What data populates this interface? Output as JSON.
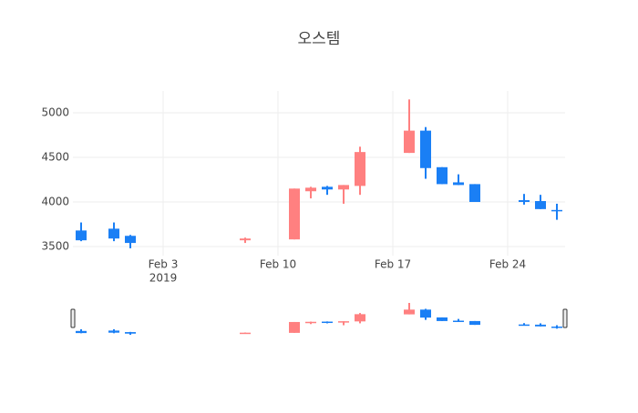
{
  "chart_data": {
    "type": "candlestick",
    "title": "오스템",
    "x": [
      "2019-01-29",
      "2019-01-31",
      "2019-02-01",
      "2019-02-08",
      "2019-02-11",
      "2019-02-12",
      "2019-02-13",
      "2019-02-14",
      "2019-02-15",
      "2019-02-18",
      "2019-02-19",
      "2019-02-20",
      "2019-02-21",
      "2019-02-22",
      "2019-02-25",
      "2019-02-26",
      "2019-02-27"
    ],
    "open": [
      3680,
      3700,
      3620,
      3570,
      3580,
      4120,
      4170,
      4140,
      4180,
      4550,
      4800,
      4390,
      4220,
      4200,
      4020,
      4010,
      3910
    ],
    "high": [
      3770,
      3770,
      3630,
      3600,
      4150,
      4170,
      4180,
      4190,
      4620,
      5150,
      4840,
      4390,
      4310,
      4200,
      4090,
      4080,
      3980
    ],
    "low": [
      3560,
      3560,
      3480,
      3540,
      3580,
      4040,
      4080,
      3980,
      4080,
      4550,
      4260,
      4200,
      4190,
      4000,
      3970,
      3920,
      3800
    ],
    "close": [
      3570,
      3590,
      3540,
      3590,
      4150,
      4160,
      4140,
      4190,
      4560,
      4800,
      4380,
      4200,
      4190,
      4000,
      4000,
      3920,
      3900
    ],
    "increasing_color": "#ff8080",
    "decreasing_color": "#1a7ff5",
    "xlim": [
      "2019-01-28T12:00",
      "2019-02-27T12:00"
    ],
    "xticks": [
      {
        "value": "2019-02-03",
        "label": "Feb 3"
      },
      {
        "value": "2019-02-10",
        "label": "Feb 10"
      },
      {
        "value": "2019-02-17",
        "label": "Feb 17"
      },
      {
        "value": "2019-02-24",
        "label": "Feb 24"
      }
    ],
    "x_year_label": "2019",
    "ylim": [
      3398,
      5245
    ],
    "yticks": [
      3500,
      4000,
      4500,
      5000
    ],
    "grid": true,
    "range_slider": true
  }
}
